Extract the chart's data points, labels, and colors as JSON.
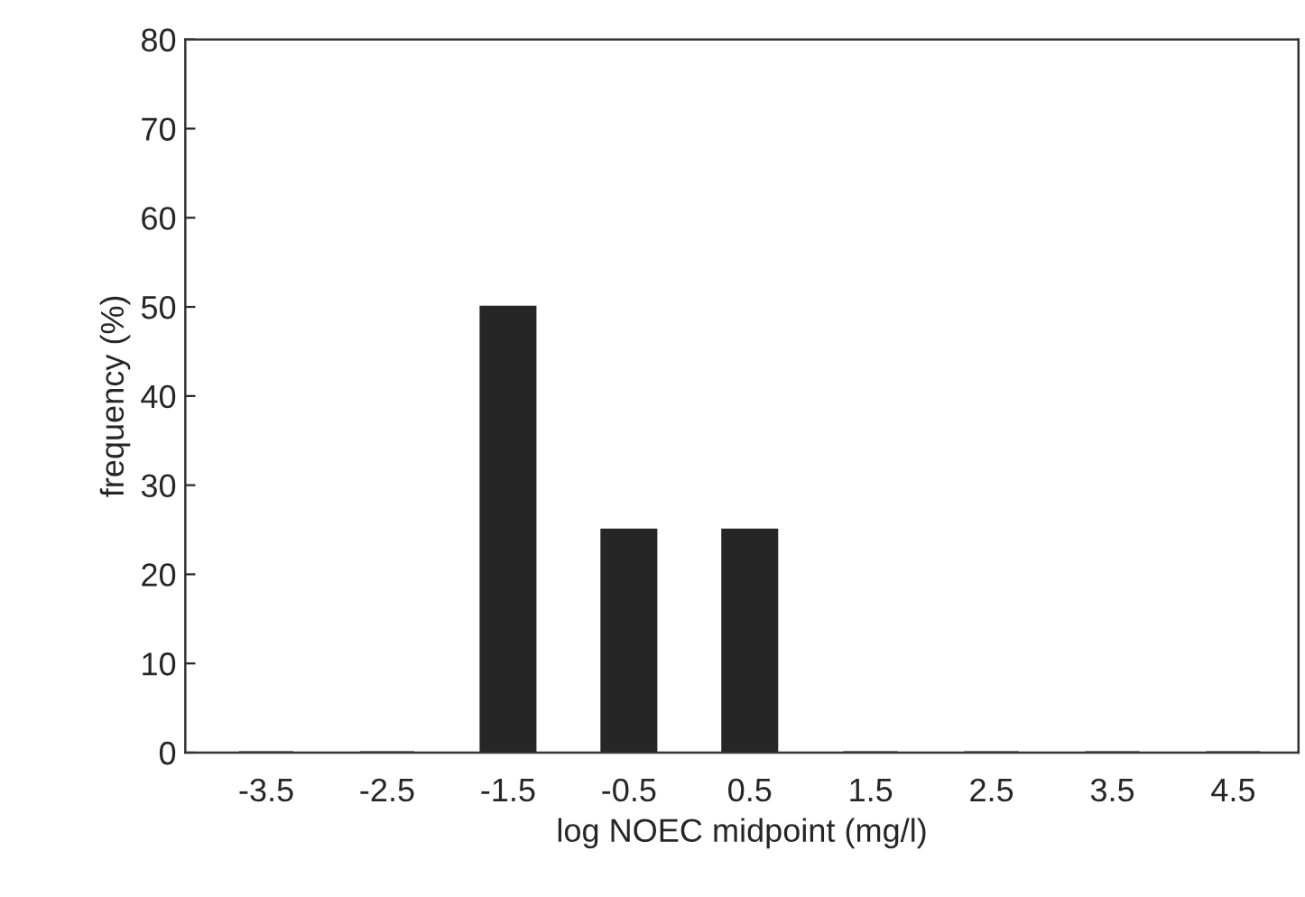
{
  "chart_data": {
    "type": "bar",
    "xlabel": "log NOEC midpoint (mg/l)",
    "ylabel": "frequency (%)",
    "categories": [
      "-3.5",
      "-2.5",
      "-1.5",
      "-0.5",
      "0.5",
      "1.5",
      "2.5",
      "3.5",
      "4.5"
    ],
    "values": [
      0,
      0,
      50,
      25,
      25,
      0,
      0,
      0,
      0
    ],
    "color": "#262626",
    "ylim": [
      0,
      80
    ],
    "yticks": [
      0,
      10,
      20,
      30,
      40,
      50,
      60,
      70,
      80
    ],
    "grid": false,
    "legend": false
  }
}
